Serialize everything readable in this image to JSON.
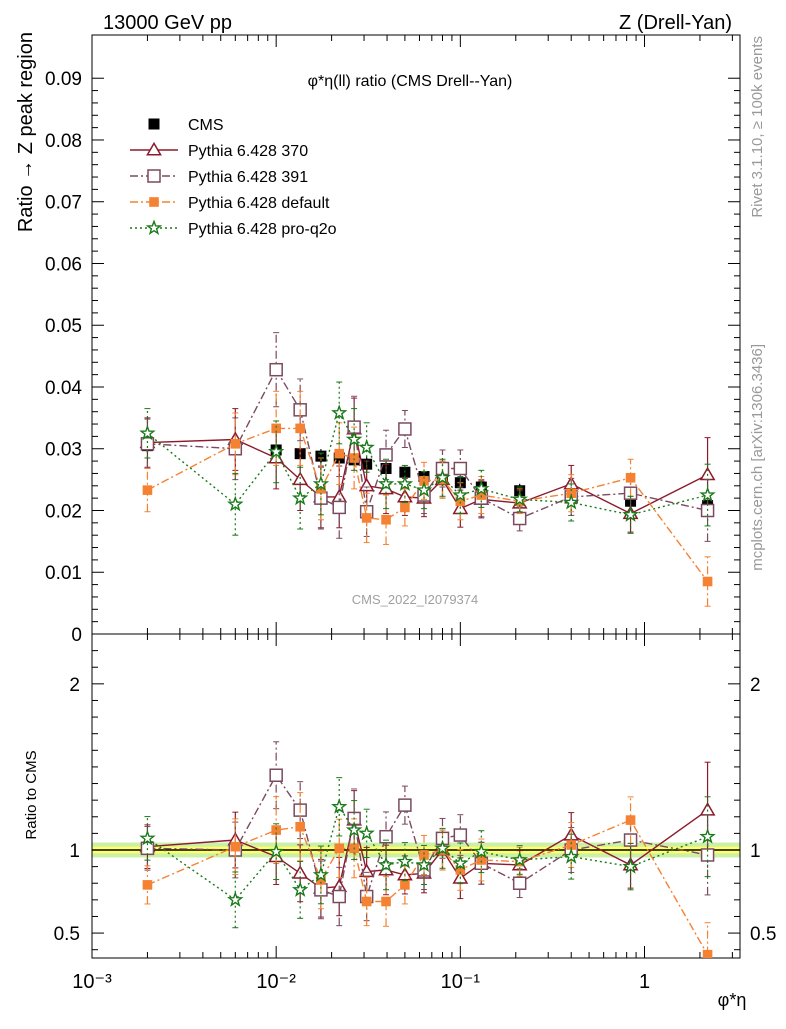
{
  "header": {
    "left": "13000 GeV pp",
    "right": "Z (Drell-Yan)"
  },
  "side_text": {
    "rivet": "Rivet 3.1.10, ≥ 100k events",
    "mcplots": "mcplots.cern.ch [arXiv:1306.3436]"
  },
  "chart_data": {
    "type": "scatter",
    "title": "φ*η(ll) ratio (CMS Drell--Yan)",
    "watermark": "CMS_2022_I2079374",
    "xlabel": "φ*η",
    "x_scale": "log",
    "xlim": [
      0.001,
      3.3
    ],
    "x_ticklabels": [
      "10⁻³",
      "10⁻²",
      "10⁻¹",
      "1"
    ],
    "main": {
      "ylabel": "Ratio → Z peak region",
      "ylim": [
        0,
        0.097
      ],
      "yticks": [
        0,
        0.01,
        0.02,
        0.03,
        0.04,
        0.05,
        0.06,
        0.07,
        0.08,
        0.09
      ],
      "ytick_labels": [
        "0",
        "0.01",
        "0.02",
        "0.03",
        "0.04",
        "0.05",
        "0.06",
        "0.07",
        "0.08",
        "0.09"
      ]
    },
    "ratio": {
      "ylabel": "Ratio to CMS",
      "ylim": [
        0.35,
        2.3
      ],
      "yticks": [
        0.5,
        1,
        2
      ],
      "ytick_labels": [
        "0.5",
        "1",
        "2"
      ],
      "band": {
        "inner": 0.02,
        "outer": 0.045,
        "inner_color": "#ffff66",
        "outer_color": "#ccf0a8"
      }
    },
    "legend_position": "top-left",
    "x": [
      0.002,
      0.006,
      0.01,
      0.0135,
      0.0175,
      0.022,
      0.0265,
      0.031,
      0.0395,
      0.05,
      0.0635,
      0.08,
      0.1,
      0.13,
      0.21,
      0.4,
      0.84,
      2.2
    ],
    "series": [
      {
        "name": "CMS",
        "style": "data",
        "color": "#000000",
        "values": [
          0.0305,
          0.0298,
          0.0298,
          0.0292,
          0.0288,
          0.0285,
          0.0282,
          0.0275,
          0.0268,
          0.0262,
          0.0255,
          0.025,
          0.0245,
          0.0238,
          0.0232,
          0.0222,
          0.0215,
          0.0208
        ]
      },
      {
        "name": "Pythia 6.428 370",
        "style": "solid",
        "marker": "triangle-open",
        "color": "#8b1a2b",
        "values": [
          0.031,
          0.0315,
          0.0285,
          0.025,
          0.0222,
          0.0222,
          0.0332,
          0.024,
          0.0235,
          0.0222,
          0.022,
          0.025,
          0.0203,
          0.0218,
          0.0212,
          0.0243,
          0.0195,
          0.0258
        ],
        "errors": [
          0.004,
          0.005,
          0.005,
          0.005,
          0.005,
          0.005,
          0.005,
          0.004,
          0.004,
          0.003,
          0.003,
          0.003,
          0.003,
          0.003,
          0.002,
          0.003,
          0.003,
          0.006
        ],
        "ratio": [
          1.02,
          1.06,
          0.96,
          0.86,
          0.77,
          0.78,
          1.18,
          0.87,
          0.88,
          0.85,
          0.86,
          1.0,
          0.83,
          0.92,
          0.91,
          1.09,
          0.91,
          1.24
        ]
      },
      {
        "name": "Pythia 6.428 391",
        "style": "dashdot",
        "marker": "square-open",
        "color": "#7a4a5f",
        "values": [
          0.0308,
          0.03,
          0.0428,
          0.0363,
          0.022,
          0.0205,
          0.0335,
          0.0198,
          0.029,
          0.0332,
          0.0225,
          0.0268,
          0.0268,
          0.022,
          0.0187,
          0.0222,
          0.0228,
          0.02
        ],
        "errors": [
          0.004,
          0.005,
          0.006,
          0.005,
          0.005,
          0.005,
          0.005,
          0.004,
          0.004,
          0.003,
          0.003,
          0.003,
          0.003,
          0.003,
          0.002,
          0.003,
          0.003,
          0.005
        ],
        "ratio": [
          1.01,
          1.0,
          1.45,
          1.24,
          0.76,
          0.72,
          1.19,
          0.72,
          1.08,
          1.27,
          0.88,
          1.07,
          1.09,
          0.92,
          0.8,
          1.0,
          1.06,
          0.97
        ]
      },
      {
        "name": "Pythia 6.428 default",
        "style": "dashdot",
        "marker": "square-filled",
        "color": "#f58232",
        "values": [
          0.0233,
          0.0308,
          0.0333,
          0.0333,
          0.0235,
          0.0292,
          0.0285,
          0.0188,
          0.0185,
          0.0205,
          0.0248,
          0.025,
          0.0215,
          0.0225,
          0.0215,
          0.0228,
          0.0253,
          0.0085
        ],
        "errors": [
          0.0035,
          0.005,
          0.006,
          0.006,
          0.005,
          0.005,
          0.005,
          0.004,
          0.004,
          0.003,
          0.003,
          0.003,
          0.003,
          0.003,
          0.002,
          0.003,
          0.003,
          0.004
        ],
        "ratio": [
          0.79,
          1.02,
          1.12,
          1.14,
          0.82,
          1.01,
          1.01,
          0.69,
          0.69,
          0.79,
          0.97,
          1.0,
          0.88,
          0.94,
          0.93,
          1.03,
          1.18,
          0.37
        ]
      },
      {
        "name": "Pythia 6.428 pro-q2o",
        "style": "dotted",
        "marker": "star",
        "color": "#1a7a1a",
        "values": [
          0.0325,
          0.021,
          0.0295,
          0.022,
          0.0243,
          0.0358,
          0.0315,
          0.0302,
          0.0243,
          0.0243,
          0.0233,
          0.0253,
          0.0225,
          0.0235,
          0.0218,
          0.0213,
          0.0193,
          0.0225
        ],
        "errors": [
          0.004,
          0.005,
          0.005,
          0.005,
          0.005,
          0.005,
          0.005,
          0.004,
          0.004,
          0.003,
          0.003,
          0.003,
          0.003,
          0.003,
          0.002,
          0.003,
          0.003,
          0.005
        ],
        "ratio": [
          1.07,
          0.7,
          0.99,
          0.76,
          0.85,
          1.26,
          1.12,
          1.1,
          0.91,
          0.93,
          0.91,
          1.01,
          0.92,
          0.99,
          0.94,
          0.96,
          0.9,
          1.08
        ]
      }
    ]
  }
}
